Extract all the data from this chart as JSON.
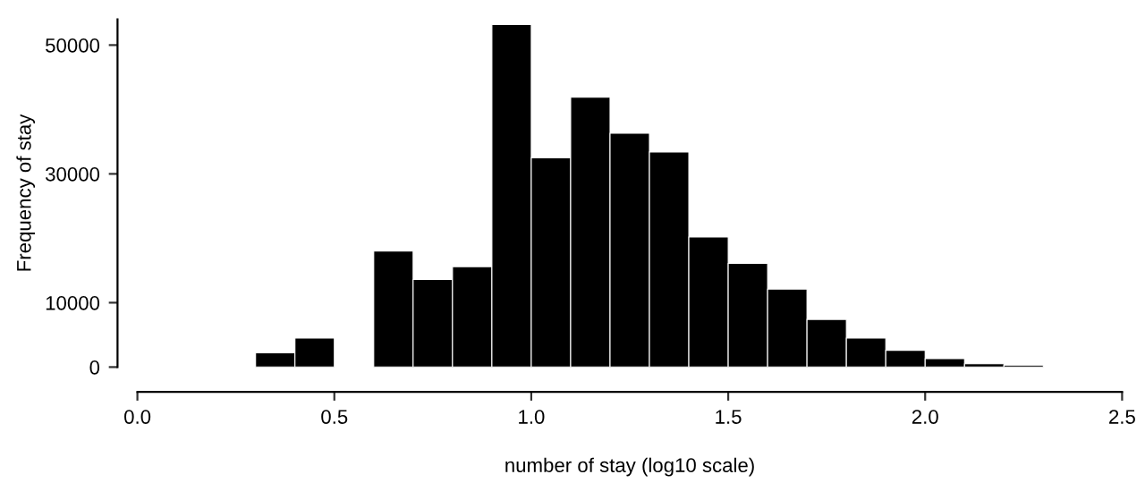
{
  "chart_data": {
    "type": "histogram",
    "xlabel": "number of stay (log10 scale)",
    "ylabel": "Frequency of stay",
    "bins": [
      0.3,
      0.4,
      0.5,
      0.6,
      0.7,
      0.8,
      0.9,
      1.0,
      1.1,
      1.2,
      1.3,
      1.4,
      1.5,
      1.6,
      1.7,
      1.8,
      1.9,
      2.0,
      2.1,
      2.2,
      2.3
    ],
    "values": [
      2200,
      4500,
      0,
      18000,
      13600,
      15600,
      53200,
      32500,
      41900,
      36300,
      33400,
      20200,
      16100,
      12100,
      7400,
      4500,
      2600,
      1300,
      500,
      300
    ],
    "color": "#000000",
    "xlim": [
      0,
      2.5
    ],
    "xticks": [
      {
        "value": 0,
        "label": "0.0"
      },
      {
        "value": 0.5,
        "label": "0.5"
      },
      {
        "value": 1,
        "label": "1.0"
      },
      {
        "value": 1.5,
        "label": "1.5"
      },
      {
        "value": 2,
        "label": "2.0"
      },
      {
        "value": 2.5,
        "label": "2.5"
      }
    ],
    "ylim": [
      0,
      54000
    ],
    "yticks": [
      0,
      10000,
      30000,
      50000
    ],
    "grid": false
  }
}
